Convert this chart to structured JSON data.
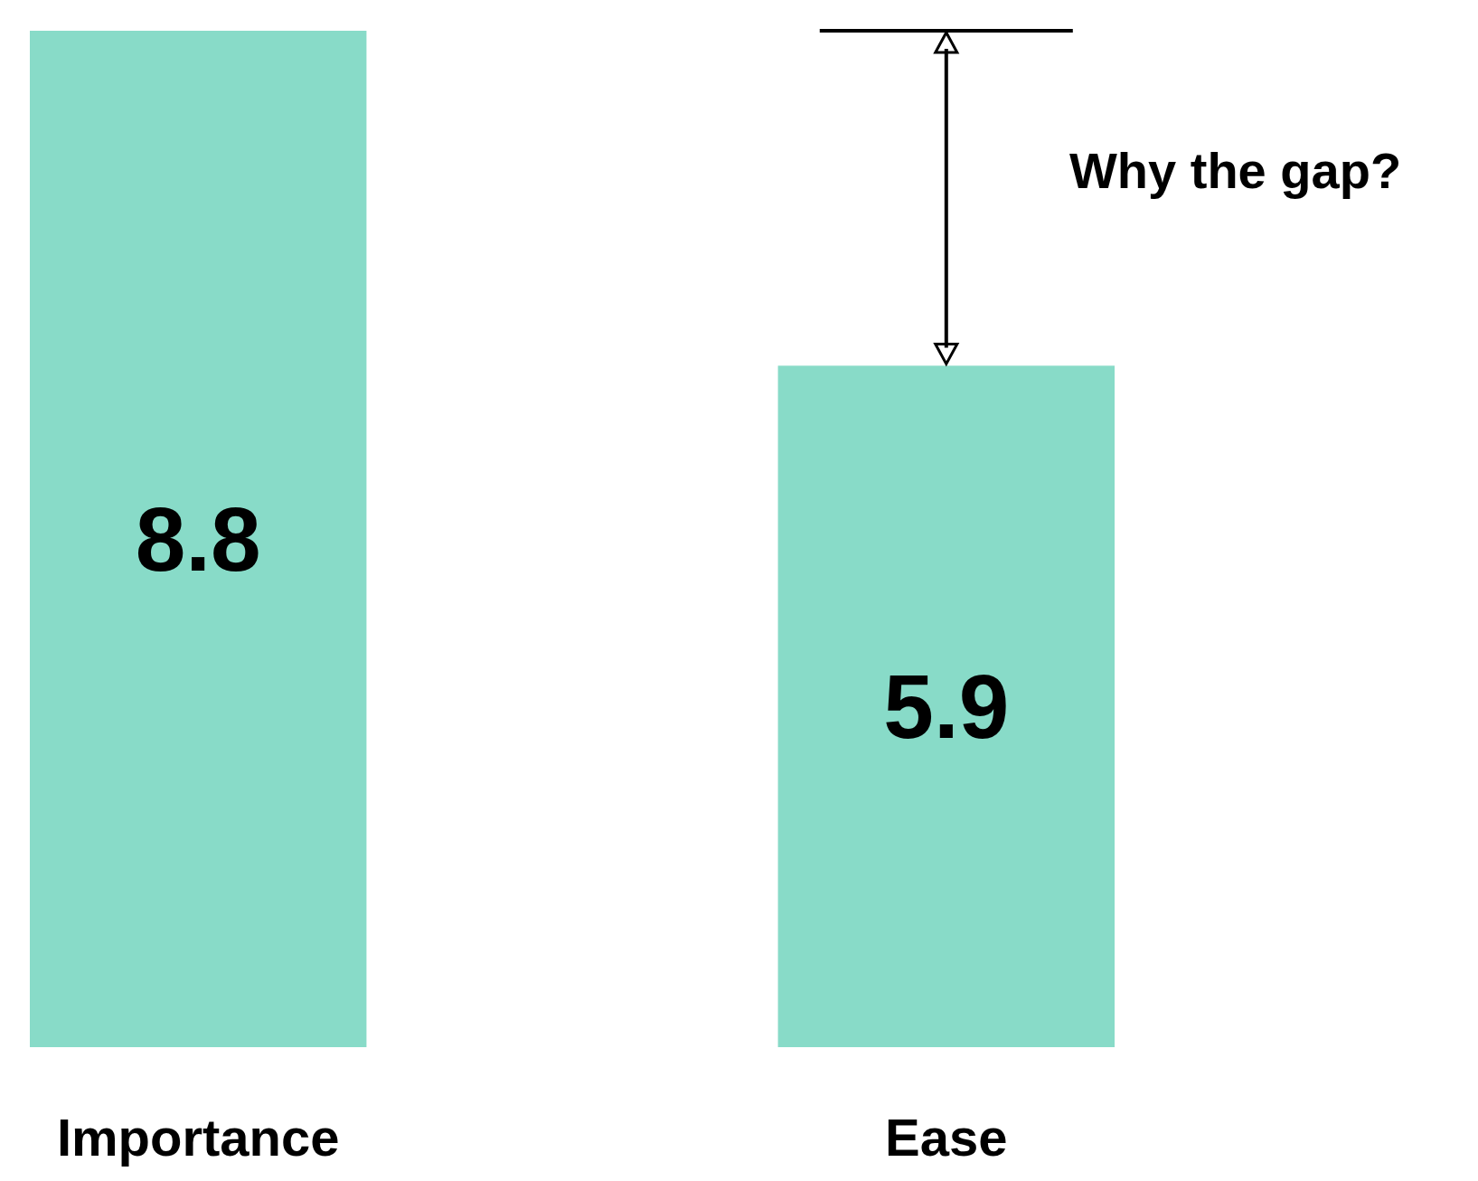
{
  "chart_data": {
    "type": "bar",
    "categories": [
      "Importance",
      "Ease"
    ],
    "values": [
      8.8,
      5.9
    ],
    "color": "#88dbc8",
    "data_labels": true,
    "annotations": [
      "Why the gap?"
    ]
  }
}
